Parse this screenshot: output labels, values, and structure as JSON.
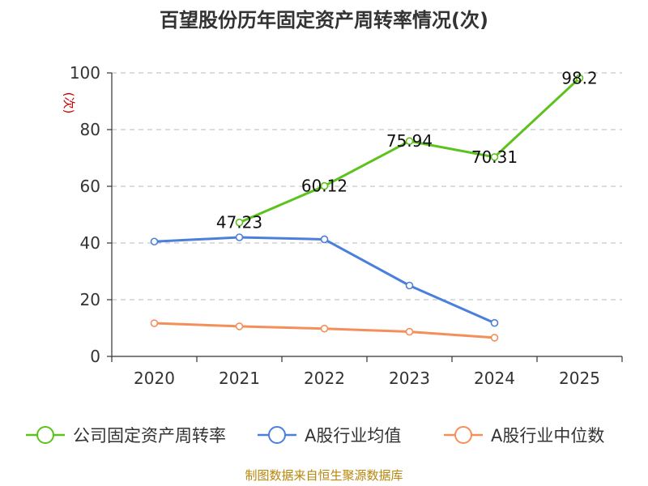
{
  "chart_data": {
    "type": "line",
    "title": "百望股份历年固定资产周转率情况(次)",
    "ylabel": "(次)",
    "ylim": [
      0,
      100
    ],
    "yticks": [
      0,
      20,
      40,
      60,
      80,
      100
    ],
    "categories": [
      "2020",
      "2021",
      "2022",
      "2023",
      "2024",
      "2025"
    ],
    "grid": true,
    "legend_position": "bottom",
    "series": [
      {
        "name": "公司固定资产周转率",
        "color": "#5cc21c",
        "values": [
          null,
          47.23,
          60.12,
          75.94,
          70.31,
          98.2
        ],
        "labels": [
          "",
          "47.23",
          "60.12",
          "75.94",
          "70.31",
          "98.2"
        ]
      },
      {
        "name": "A股行业均值",
        "color": "#4a7fdc",
        "values": [
          40.5,
          42.0,
          41.3,
          25.0,
          11.8,
          null
        ],
        "labels": []
      },
      {
        "name": "A股行业中位数",
        "color": "#f58f5a",
        "values": [
          11.7,
          10.6,
          9.8,
          8.7,
          6.6,
          null
        ],
        "labels": []
      }
    ]
  },
  "source_text": "制图数据来自恒生聚源数据库"
}
